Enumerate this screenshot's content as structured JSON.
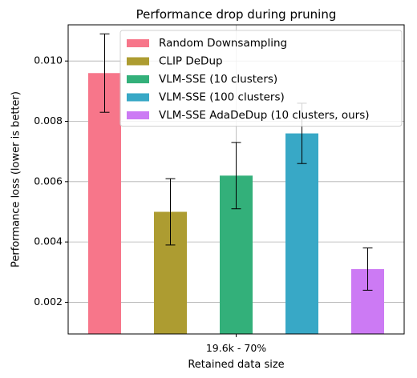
{
  "chart_data": {
    "type": "bar",
    "title": "Performance drop during pruning",
    "xlabel": "Retained data size",
    "ylabel": "Performance loss (lower is better)",
    "categories": [
      "19.6k - 70%"
    ],
    "ylim": [
      0.00095,
      0.0112
    ],
    "yticks": [
      0.002,
      0.004,
      0.006,
      0.008,
      0.01
    ],
    "ytick_labels": [
      "0.002",
      "0.004",
      "0.006",
      "0.008",
      "0.010"
    ],
    "grid": true,
    "legend_position": "top-right",
    "series": [
      {
        "name": "Random Downsampling",
        "values": [
          0.0096
        ],
        "err_low": [
          0.0083
        ],
        "err_high": [
          0.0109
        ],
        "color": "#f7768a"
      },
      {
        "name": "CLIP DeDup",
        "values": [
          0.005
        ],
        "err_low": [
          0.0039
        ],
        "err_high": [
          0.0061
        ],
        "color": "#ad9c31"
      },
      {
        "name": "VLM-SSE (10 clusters)",
        "values": [
          0.0062
        ],
        "err_low": [
          0.0051
        ],
        "err_high": [
          0.0073
        ],
        "color": "#33b07a"
      },
      {
        "name": "VLM-SSE (100 clusters)",
        "values": [
          0.0076
        ],
        "err_low": [
          0.0066
        ],
        "err_high": [
          0.0086
        ],
        "color": "#38a8c6"
      },
      {
        "name": "VLM-SSE AdaDeDup (10 clusters, ours)",
        "values": [
          0.0031
        ],
        "err_low": [
          0.0024
        ],
        "err_high": [
          0.0038
        ],
        "color": "#cc7af4"
      }
    ]
  }
}
